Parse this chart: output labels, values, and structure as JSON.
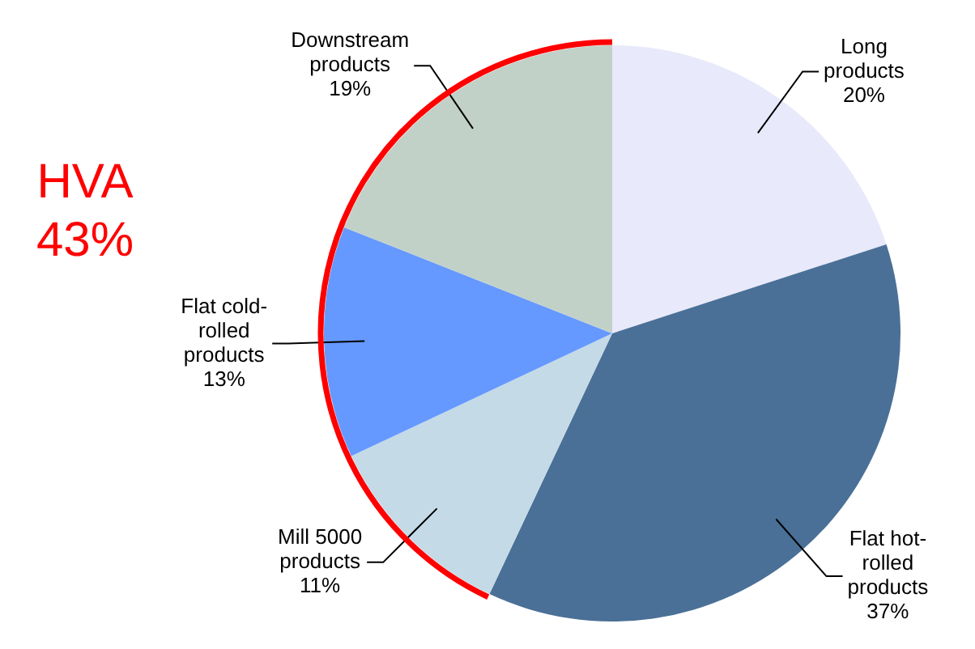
{
  "chart_data": {
    "type": "pie",
    "categories": [
      "Long products",
      "Flat hot-rolled products",
      "Mill 5000 products",
      "Flat cold-rolled products",
      "Downstream products"
    ],
    "values": [
      20,
      37,
      11,
      13,
      19
    ],
    "colors": [
      "#e8e9fa",
      "#4a7097",
      "#c4dae7",
      "#6699ff",
      "#c2d1c8"
    ],
    "value_labels": [
      "20%",
      "37%",
      "11%",
      "13%",
      "19%"
    ],
    "legend": false,
    "annotations": [
      "HVA 43%"
    ]
  }
}
